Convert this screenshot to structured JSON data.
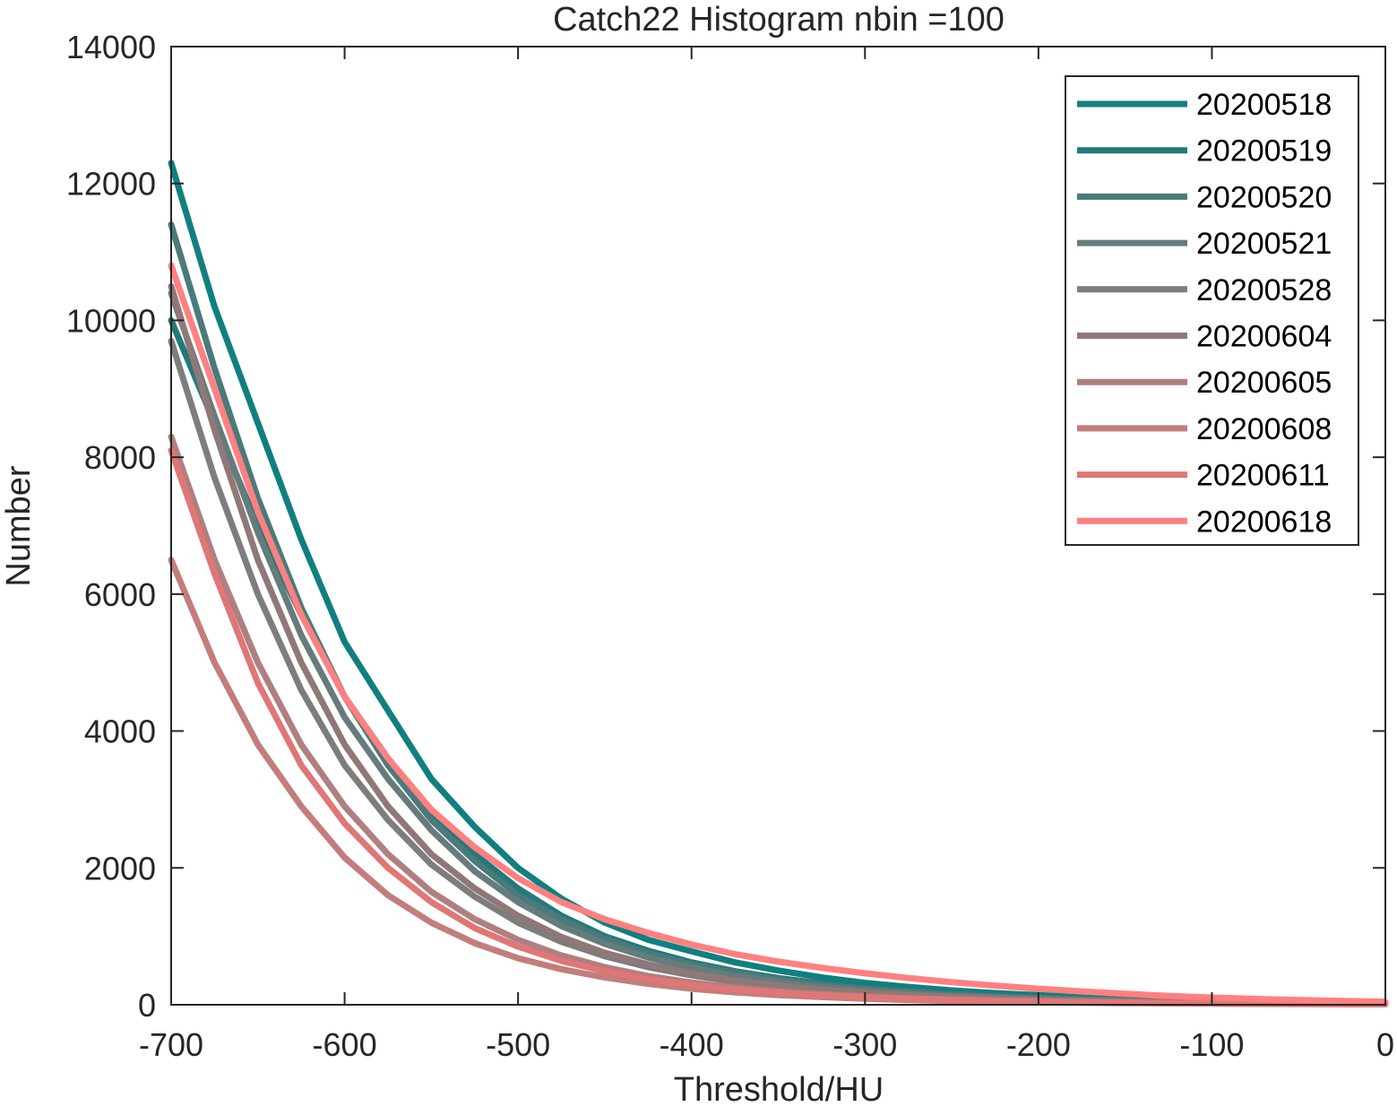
{
  "chart_data": {
    "type": "line",
    "title": "Catch22  Histogram nbin =100",
    "xlabel": "Threshold/HU",
    "ylabel": "Number",
    "xlim": [
      -700,
      0
    ],
    "ylim": [
      0,
      14000
    ],
    "xticks": [
      -700,
      -600,
      -500,
      -400,
      -300,
      -200,
      -100,
      0
    ],
    "yticks": [
      0,
      2000,
      4000,
      6000,
      8000,
      10000,
      12000,
      14000
    ],
    "x": [
      -700,
      -675,
      -650,
      -625,
      -600,
      -575,
      -550,
      -525,
      -500,
      -475,
      -450,
      -425,
      -400,
      -375,
      -350,
      -325,
      -300,
      -275,
      -250,
      -225,
      -200,
      -175,
      -150,
      -125,
      -100,
      -75,
      -50,
      -25,
      0
    ],
    "grid": false,
    "legend_position": "top-right",
    "series": [
      {
        "name": "20200518",
        "color": "#117f7f",
        "values": [
          12300,
          10200,
          8500,
          6800,
          5300,
          4300,
          3300,
          2600,
          2000,
          1550,
          1200,
          950,
          780,
          620,
          500,
          400,
          320,
          260,
          210,
          170,
          140,
          115,
          95,
          80,
          65,
          55,
          45,
          38,
          30
        ]
      },
      {
        "name": "20200519",
        "color": "#237979",
        "values": [
          10000,
          8500,
          7000,
          5700,
          4500,
          3600,
          2800,
          2200,
          1700,
          1300,
          1000,
          790,
          620,
          490,
          390,
          310,
          250,
          200,
          160,
          130,
          105,
          85,
          70,
          58,
          48,
          40,
          33,
          27,
          22
        ]
      },
      {
        "name": "20200520",
        "color": "#4a7a7a",
        "values": [
          11400,
          9300,
          7400,
          5800,
          4500,
          3500,
          2700,
          2100,
          1600,
          1250,
          960,
          750,
          590,
          470,
          370,
          295,
          235,
          190,
          150,
          120,
          98,
          80,
          65,
          54,
          44,
          36,
          30,
          25,
          20
        ]
      },
      {
        "name": "20200521",
        "color": "#667c7c",
        "values": [
          10400,
          8600,
          6900,
          5400,
          4200,
          3300,
          2550,
          1950,
          1500,
          1150,
          890,
          690,
          540,
          420,
          330,
          260,
          205,
          165,
          130,
          105,
          85,
          70,
          57,
          47,
          38,
          31,
          26,
          21,
          17
        ]
      },
      {
        "name": "20200528",
        "color": "#7d7d7d",
        "values": [
          9700,
          7700,
          6000,
          4600,
          3500,
          2700,
          2050,
          1580,
          1200,
          920,
          710,
          550,
          430,
          335,
          265,
          210,
          165,
          130,
          105,
          85,
          68,
          55,
          45,
          37,
          30,
          25,
          20,
          17,
          14
        ]
      },
      {
        "name": "20200604",
        "color": "#917878",
        "values": [
          10500,
          8400,
          6500,
          5000,
          3800,
          2900,
          2200,
          1700,
          1300,
          990,
          760,
          590,
          460,
          355,
          280,
          220,
          175,
          140,
          112,
          90,
          73,
          59,
          48,
          39,
          32,
          26,
          21,
          18,
          15
        ]
      },
      {
        "name": "20200605",
        "color": "#b07f7f",
        "values": [
          8300,
          6500,
          5000,
          3800,
          2900,
          2200,
          1650,
          1250,
          950,
          720,
          550,
          420,
          325,
          250,
          195,
          155,
          122,
          97,
          78,
          62,
          50,
          40,
          33,
          27,
          22,
          18,
          15,
          12,
          10
        ]
      },
      {
        "name": "20200608",
        "color": "#c47d7d",
        "values": [
          6500,
          5000,
          3800,
          2900,
          2150,
          1600,
          1200,
          900,
          680,
          520,
          400,
          305,
          235,
          182,
          142,
          112,
          88,
          70,
          56,
          45,
          36,
          29,
          24,
          20,
          16,
          13,
          11,
          9,
          7
        ]
      },
      {
        "name": "20200611",
        "color": "#e07676",
        "values": [
          8100,
          6300,
          4700,
          3500,
          2650,
          2000,
          1500,
          1120,
          850,
          640,
          490,
          375,
          290,
          225,
          175,
          138,
          108,
          86,
          69,
          55,
          44,
          36,
          29,
          24,
          19,
          16,
          13,
          11,
          9
        ]
      },
      {
        "name": "20200618",
        "color": "#ff8080",
        "values": [
          10800,
          9000,
          7200,
          5700,
          4500,
          3600,
          2850,
          2300,
          1850,
          1500,
          1250,
          1050,
          880,
          740,
          630,
          540,
          460,
          390,
          330,
          280,
          235,
          195,
          160,
          130,
          105,
          85,
          68,
          55,
          45
        ]
      }
    ]
  }
}
